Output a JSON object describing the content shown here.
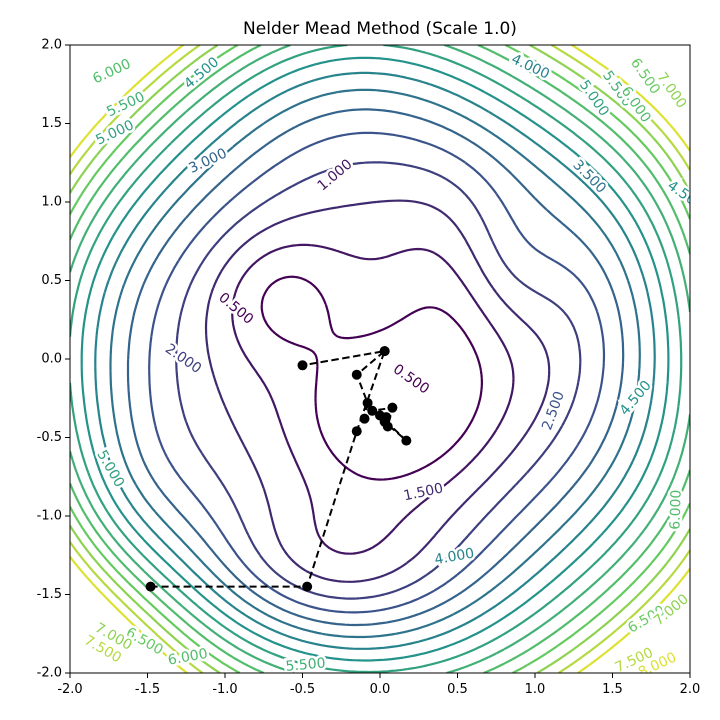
{
  "chart_data": {
    "type": "contour",
    "title": "Nelder Mead Method (Scale 1.0)",
    "xlabel": "",
    "ylabel": "",
    "xlim": [
      -2.0,
      2.0
    ],
    "ylim": [
      -2.0,
      2.0
    ],
    "x_ticks": [
      "-2.0",
      "-1.5",
      "-1.0",
      "-0.5",
      "0.0",
      "0.5",
      "1.0",
      "1.5",
      "2.0"
    ],
    "y_ticks": [
      "-2.0",
      "-1.5",
      "-1.0",
      "-0.5",
      "0.0",
      "0.5",
      "1.0",
      "1.5",
      "2.0"
    ],
    "grid": false,
    "contour_levels": [
      0.5,
      1.0,
      1.5,
      2.0,
      2.5,
      3.0,
      3.5,
      4.0,
      4.5,
      5.0,
      5.5,
      6.0,
      6.5,
      7.0,
      7.5,
      8.0
    ],
    "contour_labels": [
      {
        "text": "0.500",
        "x": -0.93,
        "y": 0.32,
        "level": 0.5,
        "angle": 40
      },
      {
        "text": "0.500",
        "x": 0.2,
        "y": -0.13,
        "level": 0.5,
        "angle": 35
      },
      {
        "text": "1.000",
        "x": -0.29,
        "y": 1.17,
        "level": 1.0,
        "angle": -40
      },
      {
        "text": "1.500",
        "x": 0.28,
        "y": -0.85,
        "level": 1.5,
        "angle": -12
      },
      {
        "text": "2.000",
        "x": -1.27,
        "y": 0.0,
        "level": 2.0,
        "angle": 35
      },
      {
        "text": "2.500",
        "x": 1.12,
        "y": -0.33,
        "level": 2.5,
        "angle": -70
      },
      {
        "text": "3.000",
        "x": -1.11,
        "y": 1.26,
        "level": 3.0,
        "angle": -25
      },
      {
        "text": "3.500",
        "x": 1.35,
        "y": 1.16,
        "level": 3.5,
        "angle": 45
      },
      {
        "text": "4.000",
        "x": 0.97,
        "y": 1.86,
        "level": 4.0,
        "angle": 25
      },
      {
        "text": "4.000",
        "x": 0.48,
        "y": -1.26,
        "level": 4.0,
        "angle": -10
      },
      {
        "text": "4.500",
        "x": -1.15,
        "y": 1.82,
        "level": 4.5,
        "angle": -40
      },
      {
        "text": "4.500",
        "x": 1.65,
        "y": -0.25,
        "level": 4.5,
        "angle": -50
      },
      {
        "text": "4.500",
        "x": 1.97,
        "y": 1.04,
        "level": 4.5,
        "angle": 35
      },
      {
        "text": "5.000",
        "x": -1.71,
        "y": 1.44,
        "level": 5.0,
        "angle": -25
      },
      {
        "text": "5.000",
        "x": -1.74,
        "y": -0.7,
        "level": 5.0,
        "angle": 60
      },
      {
        "text": "5.000",
        "x": 1.38,
        "y": 1.66,
        "level": 5.0,
        "angle": 55
      },
      {
        "text": "5.500",
        "x": -1.64,
        "y": 1.62,
        "level": 5.5,
        "angle": -25
      },
      {
        "text": "5.500",
        "x": -0.48,
        "y": -1.95,
        "level": 5.5,
        "angle": -5
      },
      {
        "text": "5.500",
        "x": 1.53,
        "y": 1.72,
        "level": 5.5,
        "angle": 55
      },
      {
        "text": "6.000",
        "x": -1.73,
        "y": 1.83,
        "level": 6.0,
        "angle": -25
      },
      {
        "text": "6.000",
        "x": -1.24,
        "y": -1.9,
        "level": 6.0,
        "angle": -10
      },
      {
        "text": "6.000",
        "x": 1.65,
        "y": 1.62,
        "level": 6.0,
        "angle": 55
      },
      {
        "text": "6.000",
        "x": 1.91,
        "y": -0.96,
        "level": 6.0,
        "angle": -88
      },
      {
        "text": "6.500",
        "x": -1.52,
        "y": -1.8,
        "level": 6.5,
        "angle": 30
      },
      {
        "text": "6.500",
        "x": 1.71,
        "y": 1.8,
        "level": 6.5,
        "angle": 55
      },
      {
        "text": "6.500",
        "x": 1.72,
        "y": -1.66,
        "level": 6.5,
        "angle": -30
      },
      {
        "text": "7.000",
        "x": -1.72,
        "y": -1.77,
        "level": 7.0,
        "angle": 30
      },
      {
        "text": "7.000",
        "x": 1.88,
        "y": 1.71,
        "level": 7.0,
        "angle": 55
      },
      {
        "text": "7.000",
        "x": 1.88,
        "y": -1.6,
        "level": 7.0,
        "angle": -40
      },
      {
        "text": "7.500",
        "x": -1.79,
        "y": -1.85,
        "level": 7.5,
        "angle": 30
      },
      {
        "text": "7.500",
        "x": 1.64,
        "y": -1.92,
        "level": 7.5,
        "angle": -25
      },
      {
        "text": "8.000",
        "x": 1.79,
        "y": -1.95,
        "level": 8.0,
        "angle": -25
      }
    ],
    "optimizer_path": {
      "x": [
        -1.48,
        -0.47,
        -0.15,
        0.03,
        -0.5,
        0.03,
        -0.15,
        -0.08,
        -0.1,
        -0.05,
        0.08,
        0.05,
        0.0,
        0.17,
        0.03,
        0.03,
        0.04
      ],
      "y": [
        -1.45,
        -1.45,
        -0.46,
        0.05,
        -0.04,
        0.05,
        -0.1,
        -0.28,
        -0.38,
        -0.33,
        -0.31,
        -0.43,
        -0.36,
        -0.52,
        -0.4,
        -0.38,
        -0.37
      ]
    }
  }
}
